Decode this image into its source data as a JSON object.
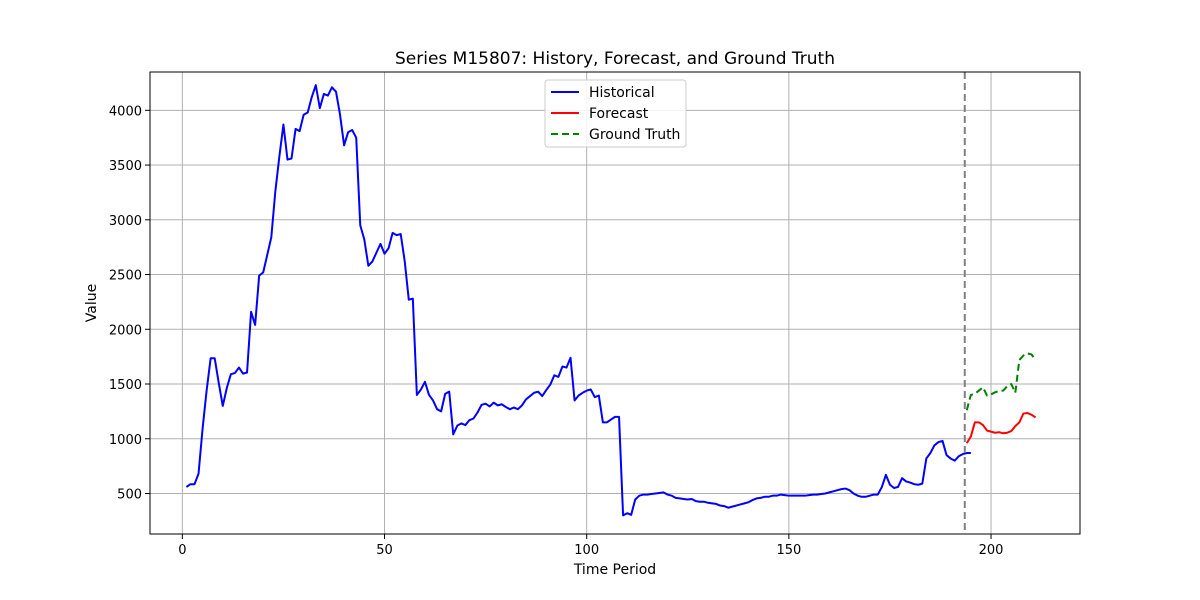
{
  "chart_data": {
    "type": "line",
    "title": "Series M15807: History, Forecast, and Ground Truth",
    "xlabel": "Time Period",
    "ylabel": "Value",
    "xlim": [
      -8,
      222
    ],
    "ylim": [
      130,
      4350
    ],
    "xticks": [
      0,
      50,
      100,
      150,
      200
    ],
    "yticks": [
      500,
      1000,
      1500,
      2000,
      2500,
      3000,
      3500,
      4000
    ],
    "grid": true,
    "legend_position": "upper center",
    "forecast_start_marker": 193.5,
    "series": [
      {
        "name": "Historical",
        "color": "#0000ff",
        "style": "solid",
        "x_start": 1,
        "values": [
          560,
          585,
          585,
          680,
          1090,
          1440,
          1735,
          1735,
          1510,
          1300,
          1465,
          1590,
          1600,
          1650,
          1595,
          1605,
          2160,
          2040,
          2490,
          2520,
          2680,
          2840,
          3260,
          3580,
          3870,
          3550,
          3560,
          3830,
          3810,
          3960,
          3980,
          4120,
          4230,
          4020,
          4150,
          4135,
          4210,
          4170,
          3960,
          3680,
          3800,
          3820,
          3750,
          2950,
          2820,
          2580,
          2620,
          2700,
          2780,
          2690,
          2740,
          2880,
          2860,
          2870,
          2620,
          2270,
          2280,
          1400,
          1450,
          1520,
          1400,
          1350,
          1270,
          1250,
          1410,
          1430,
          1040,
          1120,
          1140,
          1125,
          1170,
          1185,
          1240,
          1310,
          1320,
          1295,
          1330,
          1305,
          1315,
          1290,
          1270,
          1285,
          1270,
          1305,
          1360,
          1390,
          1420,
          1430,
          1390,
          1445,
          1495,
          1580,
          1565,
          1660,
          1650,
          1740,
          1350,
          1395,
          1420,
          1440,
          1450,
          1380,
          1395,
          1150,
          1150,
          1175,
          1200,
          1200,
          300,
          320,
          305,
          445,
          480,
          490,
          490,
          495,
          500,
          505,
          510,
          490,
          480,
          460,
          455,
          450,
          445,
          450,
          430,
          425,
          425,
          415,
          410,
          405,
          390,
          385,
          370,
          380,
          390,
          400,
          410,
          420,
          440,
          455,
          460,
          470,
          470,
          480,
          480,
          490,
          485,
          480,
          480,
          480,
          480,
          480,
          485,
          490,
          490,
          495,
          500,
          510,
          520,
          530,
          540,
          545,
          530,
          500,
          480,
          470,
          470,
          480,
          490,
          490,
          560,
          670,
          580,
          550,
          560,
          640,
          610,
          600,
          585,
          580,
          590,
          820,
          870,
          940,
          970,
          980,
          850,
          820,
          800,
          840,
          860,
          870,
          870
        ]
      },
      {
        "name": "Forecast",
        "color": "#ff0000",
        "style": "solid",
        "x_start": 194,
        "values": [
          960,
          1020,
          1150,
          1150,
          1125,
          1075,
          1065,
          1055,
          1060,
          1050,
          1055,
          1070,
          1115,
          1150,
          1230,
          1235,
          1220,
          1195
        ]
      },
      {
        "name": "Ground Truth",
        "color": "#008000",
        "style": "dashed",
        "x_start": 194,
        "values": [
          1260,
          1400,
          1410,
          1440,
          1470,
          1395,
          1405,
          1425,
          1435,
          1440,
          1480,
          1500,
          1420,
          1720,
          1760,
          1780,
          1770,
          1720
        ]
      }
    ]
  }
}
